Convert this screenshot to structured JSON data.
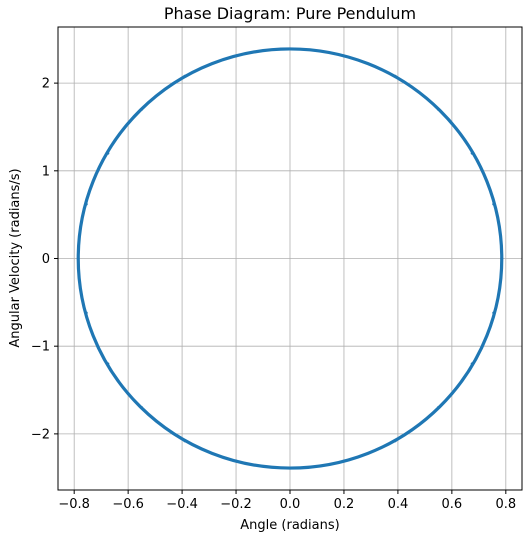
{
  "chart_data": {
    "type": "line",
    "title": "Phase Diagram: Pure Pendulum",
    "xlabel": "Angle (radians)",
    "ylabel": "Angular Velocity (radians/s)",
    "xlim": [
      -0.86,
      0.86
    ],
    "ylim": [
      -2.64,
      2.64
    ],
    "xticks": [
      -0.8,
      -0.6,
      -0.4,
      -0.2,
      0.0,
      0.2,
      0.4,
      0.6,
      0.8
    ],
    "xtick_labels": [
      "−0.8",
      "−0.6",
      "−0.4",
      "−0.2",
      "0.0",
      "0.2",
      "0.4",
      "0.6",
      "0.8"
    ],
    "yticks": [
      -2,
      -1,
      0,
      1,
      2
    ],
    "ytick_labels": [
      "−2",
      "−1",
      "0",
      "1",
      "2"
    ],
    "grid": true,
    "series": [
      {
        "color": "#1f77b4",
        "shape": "closed-orbit",
        "x": [
          0.785,
          0.755,
          0.675,
          0.55,
          0.39,
          0.2,
          0.0,
          -0.2,
          -0.39,
          -0.55,
          -0.675,
          -0.755,
          -0.785,
          -0.755,
          -0.675,
          -0.55,
          -0.39,
          -0.2,
          0.0,
          0.2,
          0.39,
          0.55,
          0.675,
          0.755,
          0.785
        ],
        "y": [
          0.0,
          0.62,
          1.2,
          1.7,
          2.08,
          2.31,
          2.39,
          2.31,
          2.08,
          1.7,
          1.2,
          0.62,
          0.0,
          -0.62,
          -1.2,
          -1.7,
          -2.08,
          -2.31,
          -2.39,
          -2.31,
          -2.08,
          -1.7,
          -1.2,
          -0.62,
          0.0
        ]
      }
    ]
  }
}
